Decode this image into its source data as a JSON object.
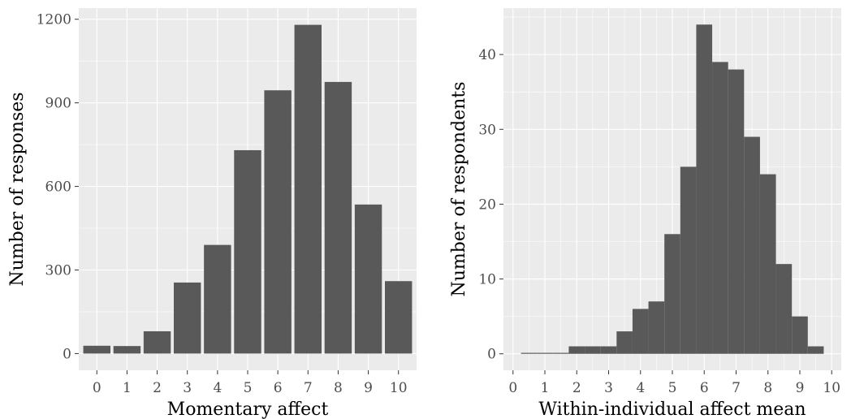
{
  "chart_data": [
    {
      "type": "bar",
      "title": "",
      "xlabel": "Momentary affect",
      "ylabel": "Number of responses",
      "categories": [
        "0",
        "1",
        "2",
        "3",
        "4",
        "5",
        "6",
        "7",
        "8",
        "9",
        "10"
      ],
      "values": [
        28,
        27,
        80,
        255,
        390,
        730,
        945,
        1180,
        975,
        535,
        260
      ],
      "xlim": [
        -0.6,
        10.6
      ],
      "ylim": [
        -60,
        1240
      ],
      "yticks": [
        0,
        300,
        600,
        900,
        1200
      ],
      "grid": true,
      "legend": "none"
    },
    {
      "type": "histogram",
      "title": "",
      "xlabel": "Within-individual affect mean",
      "ylabel": "Number of respondents",
      "bin_width": 0.5,
      "bins": [
        {
          "x0": 0.25,
          "x1": 0.75,
          "count": 0
        },
        {
          "x0": 0.75,
          "x1": 1.25,
          "count": 0
        },
        {
          "x0": 1.25,
          "x1": 1.75,
          "count": 0
        },
        {
          "x0": 1.75,
          "x1": 2.25,
          "count": 1
        },
        {
          "x0": 2.25,
          "x1": 2.75,
          "count": 1
        },
        {
          "x0": 2.75,
          "x1": 3.25,
          "count": 1
        },
        {
          "x0": 3.25,
          "x1": 3.75,
          "count": 3
        },
        {
          "x0": 3.75,
          "x1": 4.25,
          "count": 6
        },
        {
          "x0": 4.25,
          "x1": 4.75,
          "count": 7
        },
        {
          "x0": 4.75,
          "x1": 5.25,
          "count": 16
        },
        {
          "x0": 5.25,
          "x1": 5.75,
          "count": 25
        },
        {
          "x0": 5.75,
          "x1": 6.25,
          "count": 44
        },
        {
          "x0": 6.25,
          "x1": 6.75,
          "count": 39
        },
        {
          "x0": 6.75,
          "x1": 7.25,
          "count": 38
        },
        {
          "x0": 7.25,
          "x1": 7.75,
          "count": 29
        },
        {
          "x0": 7.75,
          "x1": 8.25,
          "count": 24
        },
        {
          "x0": 8.25,
          "x1": 8.75,
          "count": 12
        },
        {
          "x0": 8.75,
          "x1": 9.25,
          "count": 5
        },
        {
          "x0": 9.25,
          "x1": 9.75,
          "count": 1
        }
      ],
      "xticks": [
        0,
        1,
        2,
        3,
        4,
        5,
        6,
        7,
        8,
        9,
        10
      ],
      "yticks": [
        0,
        10,
        20,
        30,
        40
      ],
      "xlim": [
        -0.3,
        10.3
      ],
      "ylim": [
        -2.2,
        46.2
      ],
      "grid": true,
      "legend": "none"
    }
  ]
}
